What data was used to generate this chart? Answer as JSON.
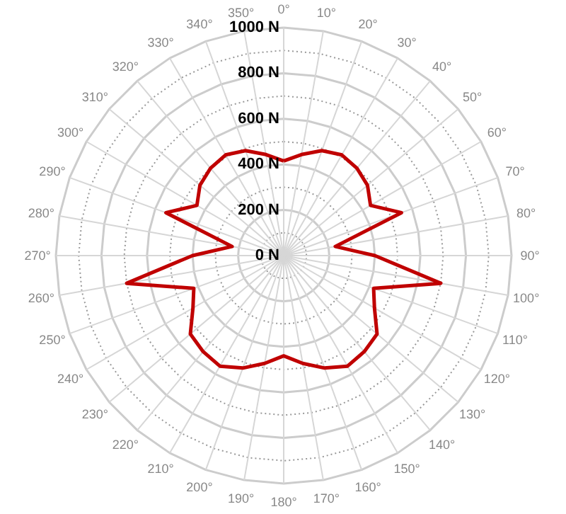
{
  "chart_data": {
    "type": "radar",
    "categories": [
      "0°",
      "10°",
      "20°",
      "30°",
      "40°",
      "50°",
      "60°",
      "70°",
      "80°",
      "90°",
      "100°",
      "110°",
      "120°",
      "130°",
      "140°",
      "150°",
      "160°",
      "170°",
      "180°",
      "190°",
      "200°",
      "210°",
      "220°",
      "230°",
      "240°",
      "250°",
      "260°",
      "270°",
      "280°",
      "290°",
      "300°",
      "310°",
      "320°",
      "330°",
      "340°",
      "350°"
    ],
    "series": [
      {
        "color": "#c00000",
        "values": [
          415,
          450,
          490,
          510,
          500,
          480,
          440,
          550,
          230,
          400,
          700,
          420,
          460,
          535,
          550,
          560,
          525,
          480,
          440,
          480,
          525,
          560,
          550,
          535,
          460,
          420,
          700,
          400,
          230,
          550,
          440,
          480,
          500,
          510,
          490,
          450
        ]
      }
    ],
    "ylim": [
      0,
      1000
    ],
    "yticks": [
      {
        "value": 0,
        "label": "0 N"
      },
      {
        "value": 200,
        "label": "200 N"
      },
      {
        "value": 400,
        "label": "400 N"
      },
      {
        "value": 600,
        "label": "600 N"
      },
      {
        "value": 800,
        "label": "800 N"
      },
      {
        "value": 1000,
        "label": "1000 N"
      }
    ],
    "grid": true
  }
}
